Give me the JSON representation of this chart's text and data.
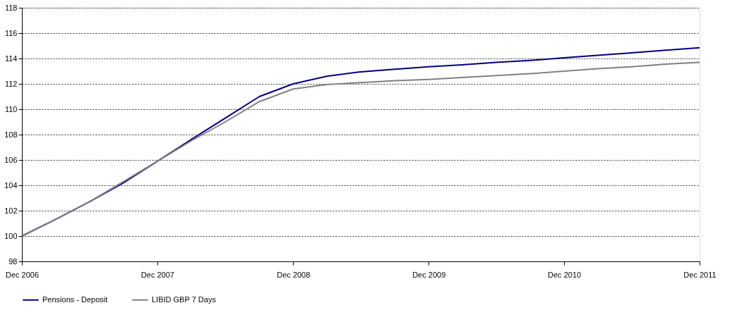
{
  "chart_data": {
    "type": "line",
    "x": [
      "2006-12",
      "2007-03",
      "2007-06",
      "2007-09",
      "2007-12",
      "2008-03",
      "2008-06",
      "2008-09",
      "2008-12",
      "2009-03",
      "2009-06",
      "2009-09",
      "2009-12",
      "2010-03",
      "2010-06",
      "2010-09",
      "2010-12",
      "2011-03",
      "2011-06",
      "2011-09",
      "2011-12"
    ],
    "series": [
      {
        "name": "Pensions - Deposit",
        "color": "#000080",
        "values": [
          100,
          101.3,
          102.7,
          104.2,
          105.9,
          107.6,
          109.3,
          111.0,
          112.0,
          112.6,
          112.95,
          113.15,
          113.35,
          113.5,
          113.7,
          113.85,
          114.05,
          114.25,
          114.45,
          114.65,
          114.85
        ]
      },
      {
        "name": "LIBID GBP 7 Days",
        "color": "#808080",
        "values": [
          100,
          101.3,
          102.7,
          104.3,
          105.9,
          107.5,
          109.0,
          110.6,
          111.6,
          111.95,
          112.1,
          112.25,
          112.35,
          112.5,
          112.65,
          112.8,
          113.0,
          113.2,
          113.35,
          113.55,
          113.7
        ]
      }
    ],
    "xlim": [
      "2006-12",
      "2011-12"
    ],
    "xticks": [
      {
        "value": "2006-12",
        "label": "Dec 2006"
      },
      {
        "value": "2007-12",
        "label": "Dec 2007"
      },
      {
        "value": "2008-12",
        "label": "Dec 2008"
      },
      {
        "value": "2009-12",
        "label": "Dec 2009"
      },
      {
        "value": "2010-12",
        "label": "Dec 2010"
      },
      {
        "value": "2011-12",
        "label": "Dec 2011"
      }
    ],
    "ylim": [
      98,
      118
    ],
    "yticks": [
      98,
      100,
      102,
      104,
      106,
      108,
      110,
      112,
      114,
      116,
      118
    ],
    "grid": "y",
    "legend": "bottom",
    "marker": "none",
    "line_style": "solid"
  }
}
